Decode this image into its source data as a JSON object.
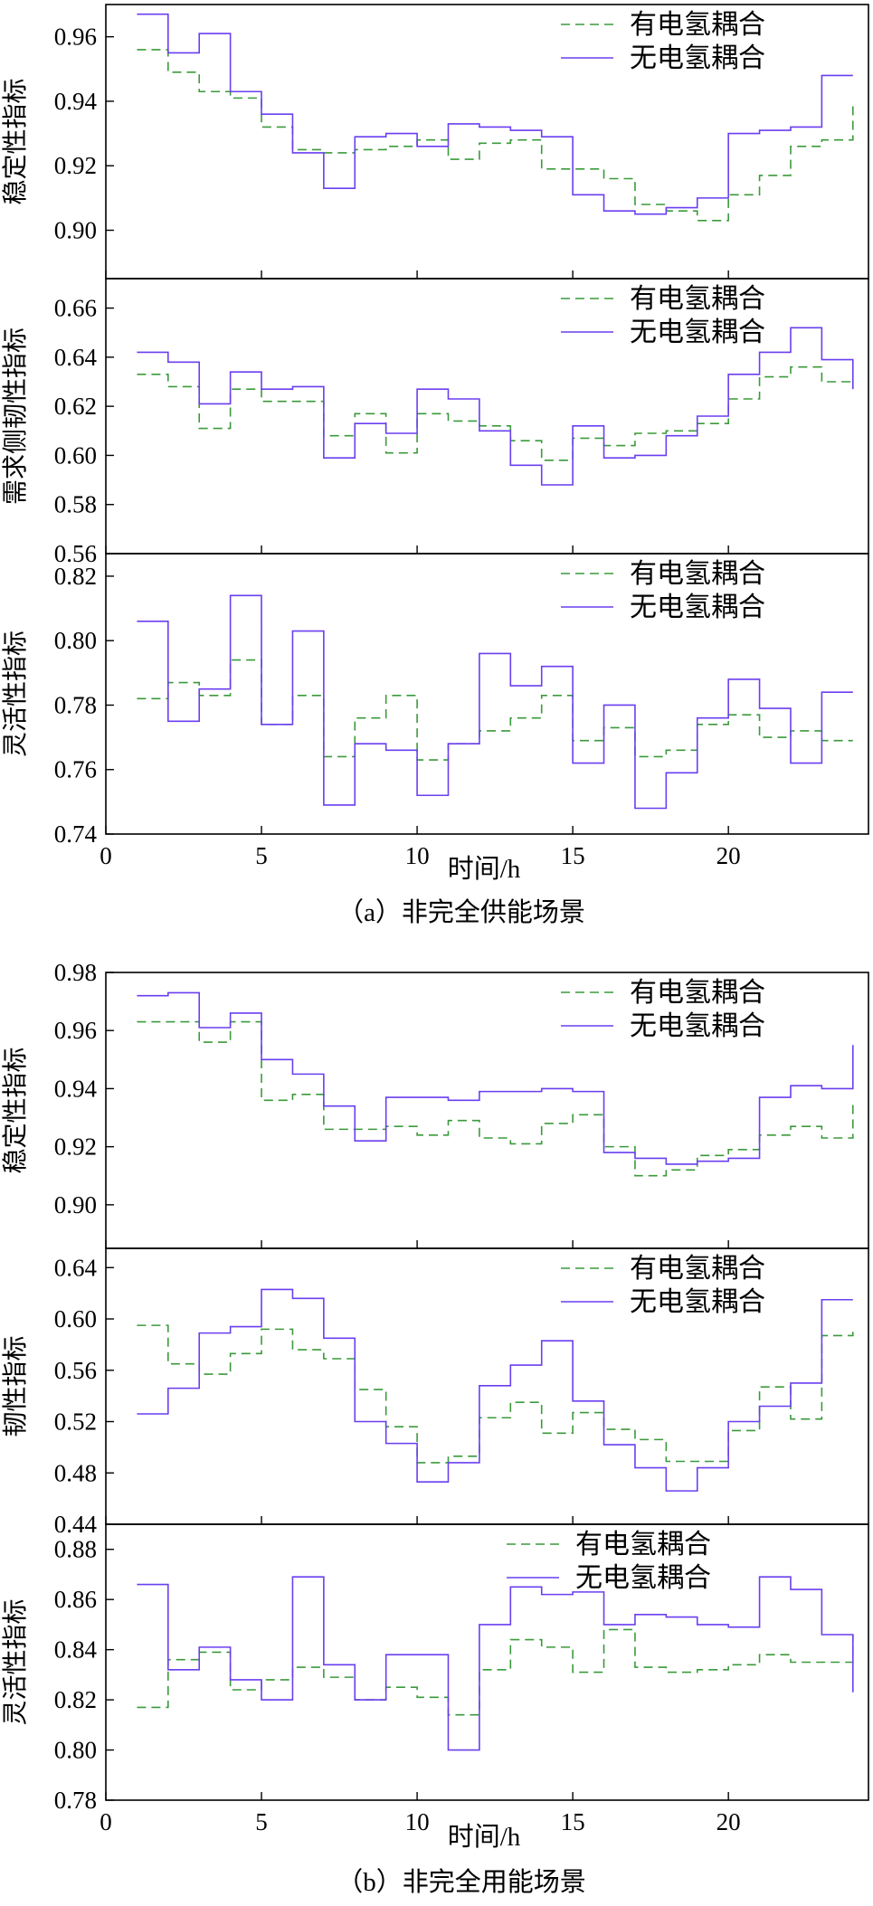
{
  "colors": {
    "with_coupling": "#3a9a3a",
    "without_coupling": "#6a3ff0",
    "axis": "#000000"
  },
  "legend": {
    "with_label": "有电氢耦合",
    "without_label": "无电氢耦合"
  },
  "figure_a": {
    "caption": "（a）非完全供能场景",
    "xlabel": "时间/h"
  },
  "figure_b": {
    "caption": "（b）非完全用能场景",
    "xlabel": "时间/h"
  },
  "chart_data": [
    {
      "type": "line",
      "step": true,
      "group": "a",
      "ylabel": "稳定性指标",
      "ylim": [
        0.885,
        0.97
      ],
      "yticks": [
        0.9,
        0.92,
        0.94,
        0.96
      ],
      "ytick_decimals": 2,
      "xlim": [
        0,
        24.5
      ],
      "xticks": [
        0,
        5,
        10,
        15,
        20
      ],
      "show_xticklabels": false,
      "series": [
        {
          "name": "有电氢耦合",
          "style": "dashed",
          "values": [
            0.956,
            0.949,
            0.943,
            0.941,
            0.932,
            0.925,
            0.924,
            0.925,
            0.926,
            0.928,
            0.922,
            0.927,
            0.928,
            0.919,
            0.919,
            0.916,
            0.908,
            0.906,
            0.903,
            0.911,
            0.917,
            0.926,
            0.928,
            0.939
          ]
        },
        {
          "name": "无电氢耦合",
          "style": "solid",
          "values": [
            0.967,
            0.955,
            0.961,
            0.943,
            0.936,
            0.924,
            0.913,
            0.929,
            0.93,
            0.926,
            0.933,
            0.932,
            0.931,
            0.929,
            0.911,
            0.906,
            0.905,
            0.907,
            0.91,
            0.93,
            0.931,
            0.932,
            0.948,
            0.948
          ]
        }
      ]
    },
    {
      "type": "line",
      "step": true,
      "group": "a",
      "ylabel": "需求侧韧性指标",
      "ylim": [
        0.56,
        0.672
      ],
      "yticks": [
        0.56,
        0.58,
        0.6,
        0.62,
        0.64,
        0.66
      ],
      "ytick_decimals": 2,
      "xlim": [
        0,
        24.5
      ],
      "xticks": [
        0,
        5,
        10,
        15,
        20
      ],
      "show_xticklabels": false,
      "series": [
        {
          "name": "有电氢耦合",
          "style": "dashed",
          "values": [
            0.633,
            0.628,
            0.611,
            0.627,
            0.622,
            0.622,
            0.608,
            0.617,
            0.601,
            0.617,
            0.614,
            0.612,
            0.606,
            0.598,
            0.607,
            0.604,
            0.609,
            0.61,
            0.613,
            0.623,
            0.632,
            0.636,
            0.63,
            0.63
          ]
        },
        {
          "name": "无电氢耦合",
          "style": "solid",
          "values": [
            0.642,
            0.638,
            0.621,
            0.634,
            0.627,
            0.628,
            0.599,
            0.613,
            0.609,
            0.627,
            0.623,
            0.61,
            0.596,
            0.588,
            0.612,
            0.599,
            0.6,
            0.608,
            0.616,
            0.633,
            0.642,
            0.652,
            0.639,
            0.627
          ]
        }
      ]
    },
    {
      "type": "line",
      "step": true,
      "group": "a",
      "ylabel": "灵活性指标",
      "ylim": [
        0.74,
        0.827
      ],
      "yticks": [
        0.74,
        0.76,
        0.78,
        0.8,
        0.82
      ],
      "ytick_decimals": 2,
      "xlim": [
        0,
        24.5
      ],
      "xticks": [
        0,
        5,
        10,
        15,
        20
      ],
      "show_xticklabels": true,
      "series": [
        {
          "name": "有电氢耦合",
          "style": "dashed",
          "values": [
            0.782,
            0.787,
            0.783,
            0.794,
            0.774,
            0.783,
            0.764,
            0.776,
            0.783,
            0.763,
            0.768,
            0.772,
            0.776,
            0.783,
            0.769,
            0.773,
            0.764,
            0.766,
            0.774,
            0.777,
            0.77,
            0.772,
            0.769,
            0.769
          ]
        },
        {
          "name": "无电氢耦合",
          "style": "solid",
          "values": [
            0.806,
            0.775,
            0.785,
            0.814,
            0.774,
            0.803,
            0.749,
            0.768,
            0.766,
            0.752,
            0.768,
            0.796,
            0.786,
            0.792,
            0.762,
            0.78,
            0.748,
            0.759,
            0.776,
            0.788,
            0.779,
            0.762,
            0.784,
            0.784
          ]
        }
      ]
    },
    {
      "type": "line",
      "step": true,
      "group": "b",
      "ylabel": "稳定性指标",
      "ylim": [
        0.885,
        0.98
      ],
      "yticks": [
        0.9,
        0.92,
        0.94,
        0.96,
        0.98
      ],
      "ytick_decimals": 2,
      "xlim": [
        0,
        24.5
      ],
      "xticks": [
        0,
        5,
        10,
        15,
        20
      ],
      "show_xticklabels": false,
      "series": [
        {
          "name": "有电氢耦合",
          "style": "dashed",
          "values": [
            0.963,
            0.963,
            0.956,
            0.963,
            0.936,
            0.938,
            0.926,
            0.926,
            0.927,
            0.924,
            0.929,
            0.923,
            0.921,
            0.928,
            0.931,
            0.92,
            0.91,
            0.912,
            0.917,
            0.919,
            0.924,
            0.927,
            0.923,
            0.936
          ]
        },
        {
          "name": "无电氢耦合",
          "style": "solid",
          "values": [
            0.972,
            0.973,
            0.961,
            0.966,
            0.95,
            0.945,
            0.934,
            0.922,
            0.937,
            0.937,
            0.936,
            0.939,
            0.939,
            0.94,
            0.939,
            0.918,
            0.916,
            0.914,
            0.915,
            0.916,
            0.937,
            0.941,
            0.94,
            0.955
          ]
        }
      ]
    },
    {
      "type": "line",
      "step": true,
      "group": "b",
      "ylabel": "韧性指标",
      "ylim": [
        0.44,
        0.655
      ],
      "yticks": [
        0.44,
        0.48,
        0.52,
        0.56,
        0.6,
        0.64
      ],
      "ytick_decimals": 2,
      "xlim": [
        0,
        24.5
      ],
      "xticks": [
        0,
        5,
        10,
        15,
        20
      ],
      "show_xticklabels": false,
      "series": [
        {
          "name": "有电氢耦合",
          "style": "dashed",
          "values": [
            0.595,
            0.565,
            0.557,
            0.573,
            0.592,
            0.576,
            0.569,
            0.545,
            0.516,
            0.488,
            0.493,
            0.523,
            0.535,
            0.511,
            0.527,
            0.514,
            0.506,
            0.489,
            0.489,
            0.513,
            0.547,
            0.522,
            0.587,
            0.594
          ]
        },
        {
          "name": "无电氢耦合",
          "style": "solid",
          "values": [
            0.526,
            0.546,
            0.589,
            0.594,
            0.623,
            0.616,
            0.585,
            0.52,
            0.503,
            0.473,
            0.488,
            0.548,
            0.564,
            0.583,
            0.536,
            0.502,
            0.484,
            0.466,
            0.484,
            0.52,
            0.532,
            0.55,
            0.615,
            0.615
          ]
        }
      ]
    },
    {
      "type": "line",
      "step": true,
      "group": "b",
      "ylabel": "灵活性指标",
      "ylim": [
        0.78,
        0.89
      ],
      "yticks": [
        0.78,
        0.8,
        0.82,
        0.84,
        0.86,
        0.88
      ],
      "ytick_decimals": 2,
      "xlim": [
        0,
        24.5
      ],
      "xticks": [
        0,
        5,
        10,
        15,
        20
      ],
      "show_xticklabels": true,
      "series": [
        {
          "name": "有电氢耦合",
          "style": "dashed",
          "values": [
            0.817,
            0.836,
            0.839,
            0.824,
            0.828,
            0.833,
            0.829,
            0.82,
            0.825,
            0.821,
            0.814,
            0.832,
            0.844,
            0.841,
            0.831,
            0.848,
            0.833,
            0.831,
            0.832,
            0.834,
            0.838,
            0.835,
            0.835,
            0.846
          ]
        },
        {
          "name": "无电氢耦合",
          "style": "solid",
          "values": [
            0.866,
            0.832,
            0.841,
            0.828,
            0.82,
            0.869,
            0.834,
            0.82,
            0.838,
            0.838,
            0.8,
            0.85,
            0.865,
            0.862,
            0.863,
            0.85,
            0.854,
            0.853,
            0.85,
            0.849,
            0.869,
            0.864,
            0.846,
            0.823
          ]
        }
      ]
    }
  ]
}
